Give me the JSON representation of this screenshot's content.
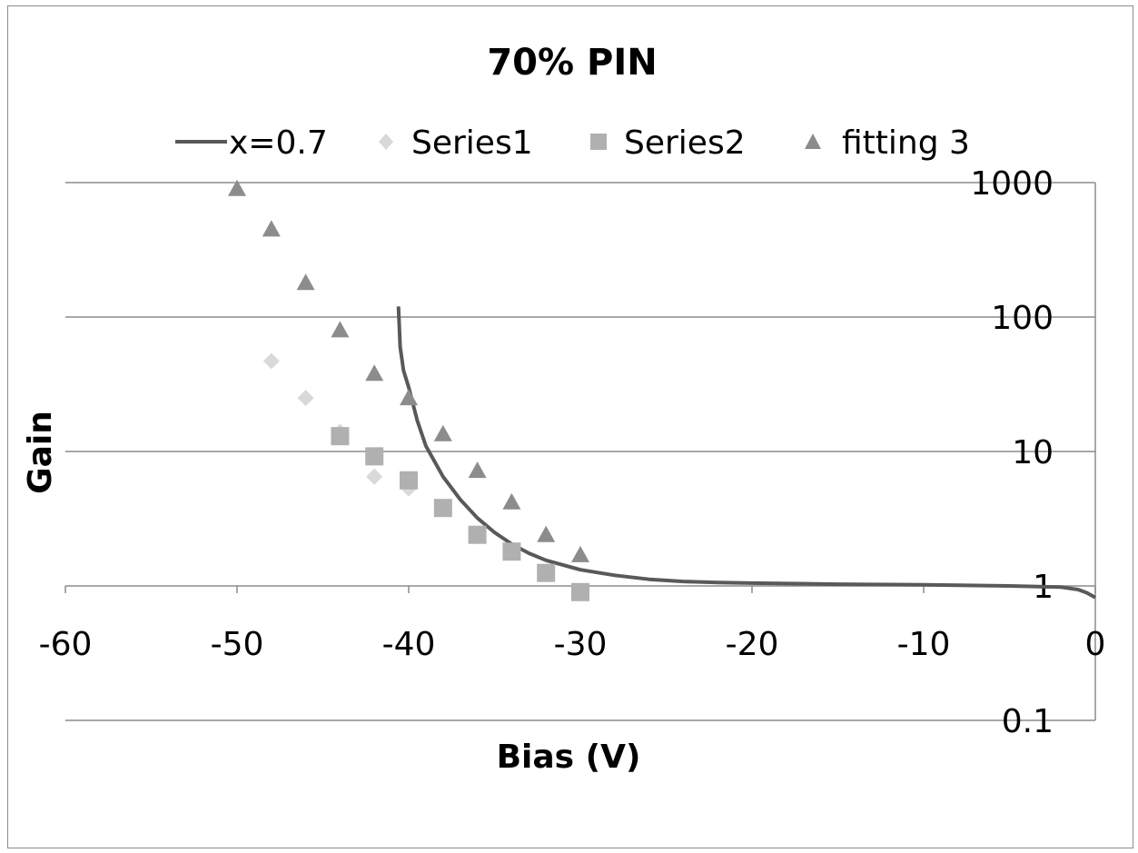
{
  "chart_data": {
    "type": "scatter",
    "title": "70% PIN",
    "xlabel": "Bias (V)",
    "ylabel": "Gain",
    "xlim": [
      -60,
      0
    ],
    "ylim": [
      0.1,
      1000
    ],
    "y_scale": "log",
    "grid": "horizontal major gridlines",
    "legend_position": "top",
    "x_ticks": [
      "-60",
      "-50",
      "-40",
      "-30",
      "-20",
      "-10",
      "0"
    ],
    "y_ticks": [
      "1000",
      "100",
      "10",
      "1",
      "0.1"
    ],
    "colors": {
      "line": "#595959",
      "series1": "#d9d9d9",
      "series2": "#b0b0b0",
      "fitting3": "#8c8c8c",
      "gridline": "#8c8c8c"
    },
    "series": [
      {
        "name": "x=0.7",
        "mark": "line",
        "x": [
          -40.6,
          -40.5,
          -40.3,
          -40.0,
          -39.5,
          -39.0,
          -38.0,
          -37.0,
          -36.0,
          -35.0,
          -34.0,
          -33.0,
          -32.0,
          -30.0,
          -28.0,
          -26.0,
          -24.0,
          -22.0,
          -20.0,
          -15.0,
          -10.0,
          -5.0,
          -2.0,
          -1.0,
          -0.5,
          0.0
        ],
        "y": [
          120,
          60,
          40,
          30,
          17,
          11,
          6.5,
          4.4,
          3.2,
          2.5,
          2.05,
          1.75,
          1.55,
          1.32,
          1.2,
          1.12,
          1.08,
          1.06,
          1.05,
          1.03,
          1.02,
          1.0,
          0.98,
          0.94,
          0.89,
          0.82
        ]
      },
      {
        "name": "Series1",
        "mark": "diamond",
        "x": [
          -48,
          -46,
          -44,
          -42,
          -40
        ],
        "y": [
          47,
          25,
          14,
          6.5,
          5.3
        ]
      },
      {
        "name": "Series2",
        "mark": "square",
        "x": [
          -44,
          -42,
          -40,
          -38,
          -36,
          -34,
          -32,
          -30
        ],
        "y": [
          13,
          9.2,
          6.1,
          3.8,
          2.4,
          1.8,
          1.25,
          0.9
        ]
      },
      {
        "name": "fitting 3",
        "mark": "triangle",
        "x": [
          -50,
          -48,
          -46,
          -44,
          -42,
          -40,
          -38,
          -36,
          -34,
          -32,
          -30
        ],
        "y": [
          900,
          450,
          180,
          80,
          38,
          25,
          13.5,
          7.2,
          4.2,
          2.4,
          1.7
        ]
      }
    ]
  }
}
